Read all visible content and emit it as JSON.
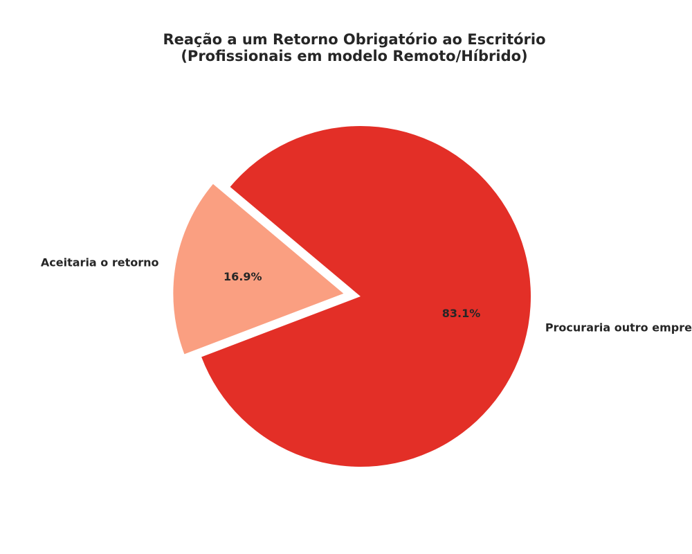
{
  "chart_data": {
    "type": "pie",
    "title": [
      "Reação a um Retorno Obrigatório ao Escritório",
      "(Profissionais em modelo Remoto/Híbrido)"
    ],
    "categories": [
      "Aceitaria o retorno",
      "Procuraria outro emprego"
    ],
    "values": [
      16.9,
      83.1
    ],
    "percent_labels": [
      "16.9%",
      "83.1%"
    ],
    "colors": [
      "#fa9f81",
      "#e32f27"
    ],
    "exploded": [
      true,
      false
    ]
  }
}
